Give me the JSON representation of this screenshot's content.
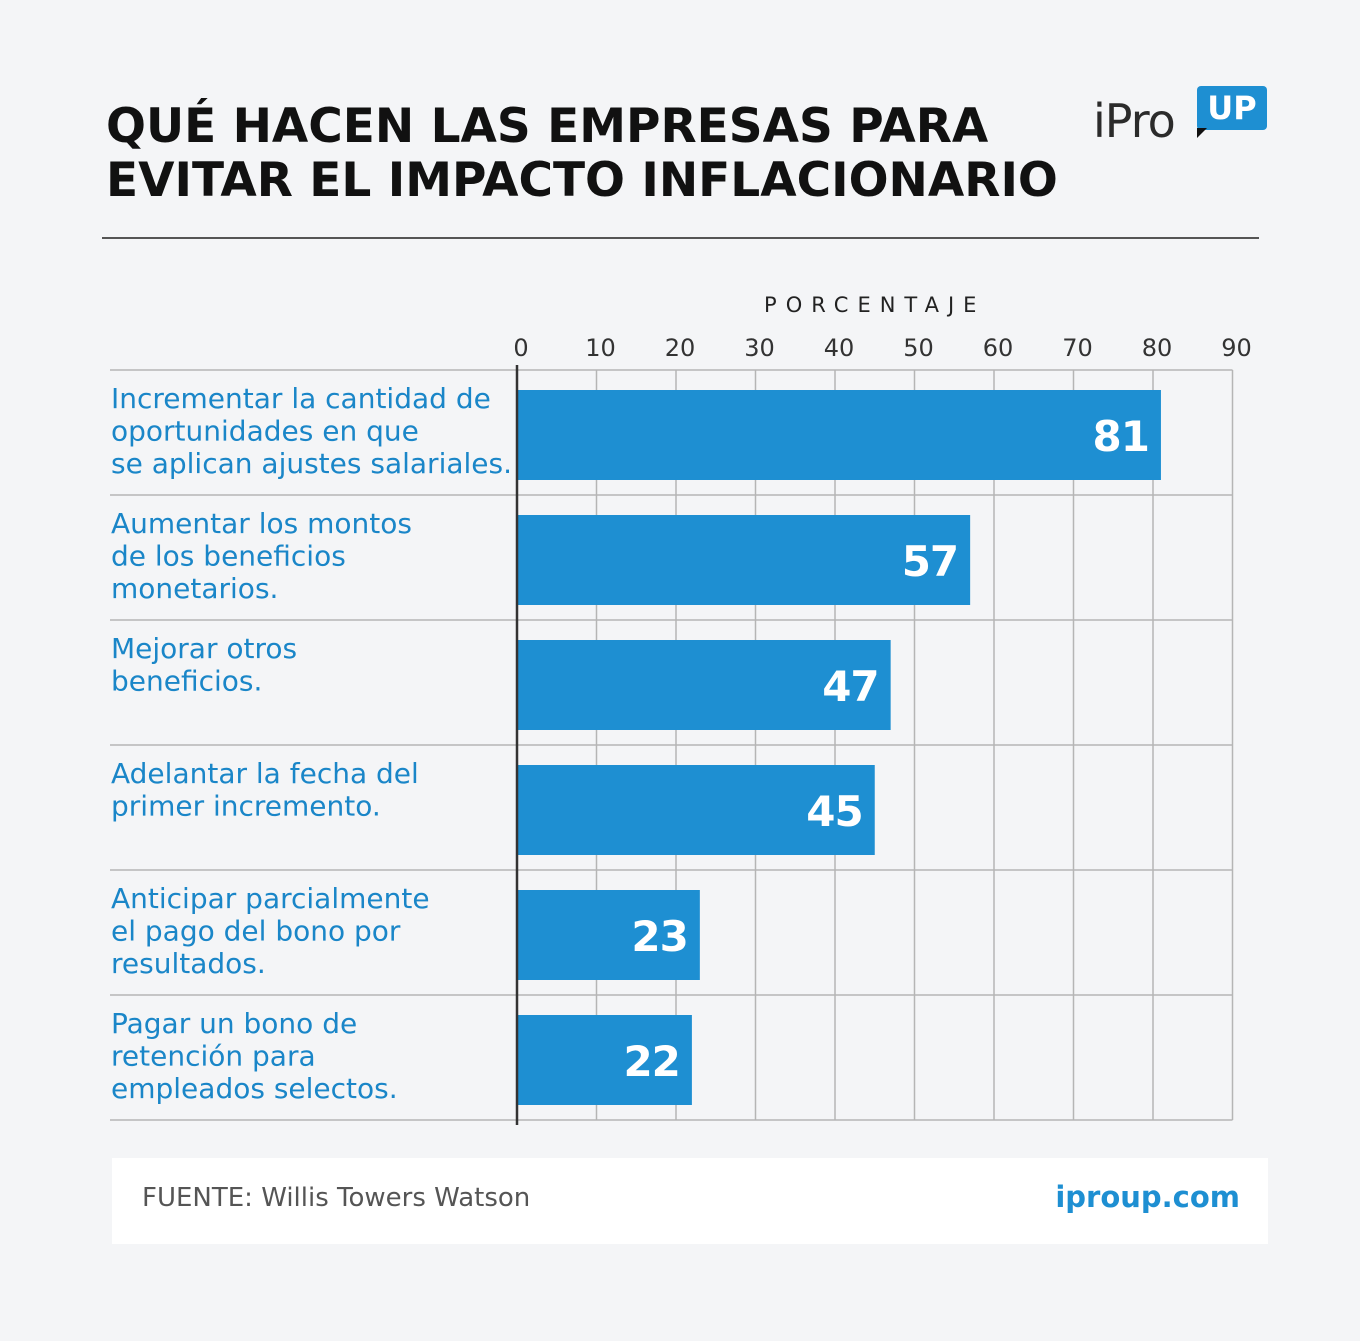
{
  "header": {
    "title_line1": "QUÉ HACEN LAS EMPRESAS PARA",
    "title_line2": "EVITAR EL IMPACTO INFLACIONARIO"
  },
  "logo": {
    "text": "iPro",
    "badge": "UP"
  },
  "chart_data": {
    "type": "bar",
    "orientation": "horizontal",
    "axis_title": "PORCENTAJE",
    "xlim": [
      0,
      90
    ],
    "ticks": [
      "0",
      "10",
      "20",
      "30",
      "40",
      "50",
      "60",
      "70",
      "80",
      "90"
    ],
    "grid": true,
    "categories": [
      [
        "Incrementar la cantidad de",
        "oportunidades en que",
        "se aplican ajustes salariales."
      ],
      [
        "Aumentar los montos",
        "de los beneficios",
        "monetarios."
      ],
      [
        "Mejorar otros",
        "beneficios."
      ],
      [
        "Adelantar la fecha del",
        "primer incremento."
      ],
      [
        "Anticipar parcialmente",
        "el pago del bono por",
        "resultados."
      ],
      [
        "Pagar un bono de",
        "retención para",
        "empleados selectos."
      ]
    ],
    "values": [
      81,
      57,
      47,
      45,
      23,
      22
    ]
  },
  "footer": {
    "source": "FUENTE: Willis Towers Watson",
    "url": "iproup.com"
  },
  "colors": {
    "bar": "#1e8fd2",
    "label": "#1a86c8",
    "grid": "#b5b5b5",
    "background": "#f4f5f7"
  }
}
